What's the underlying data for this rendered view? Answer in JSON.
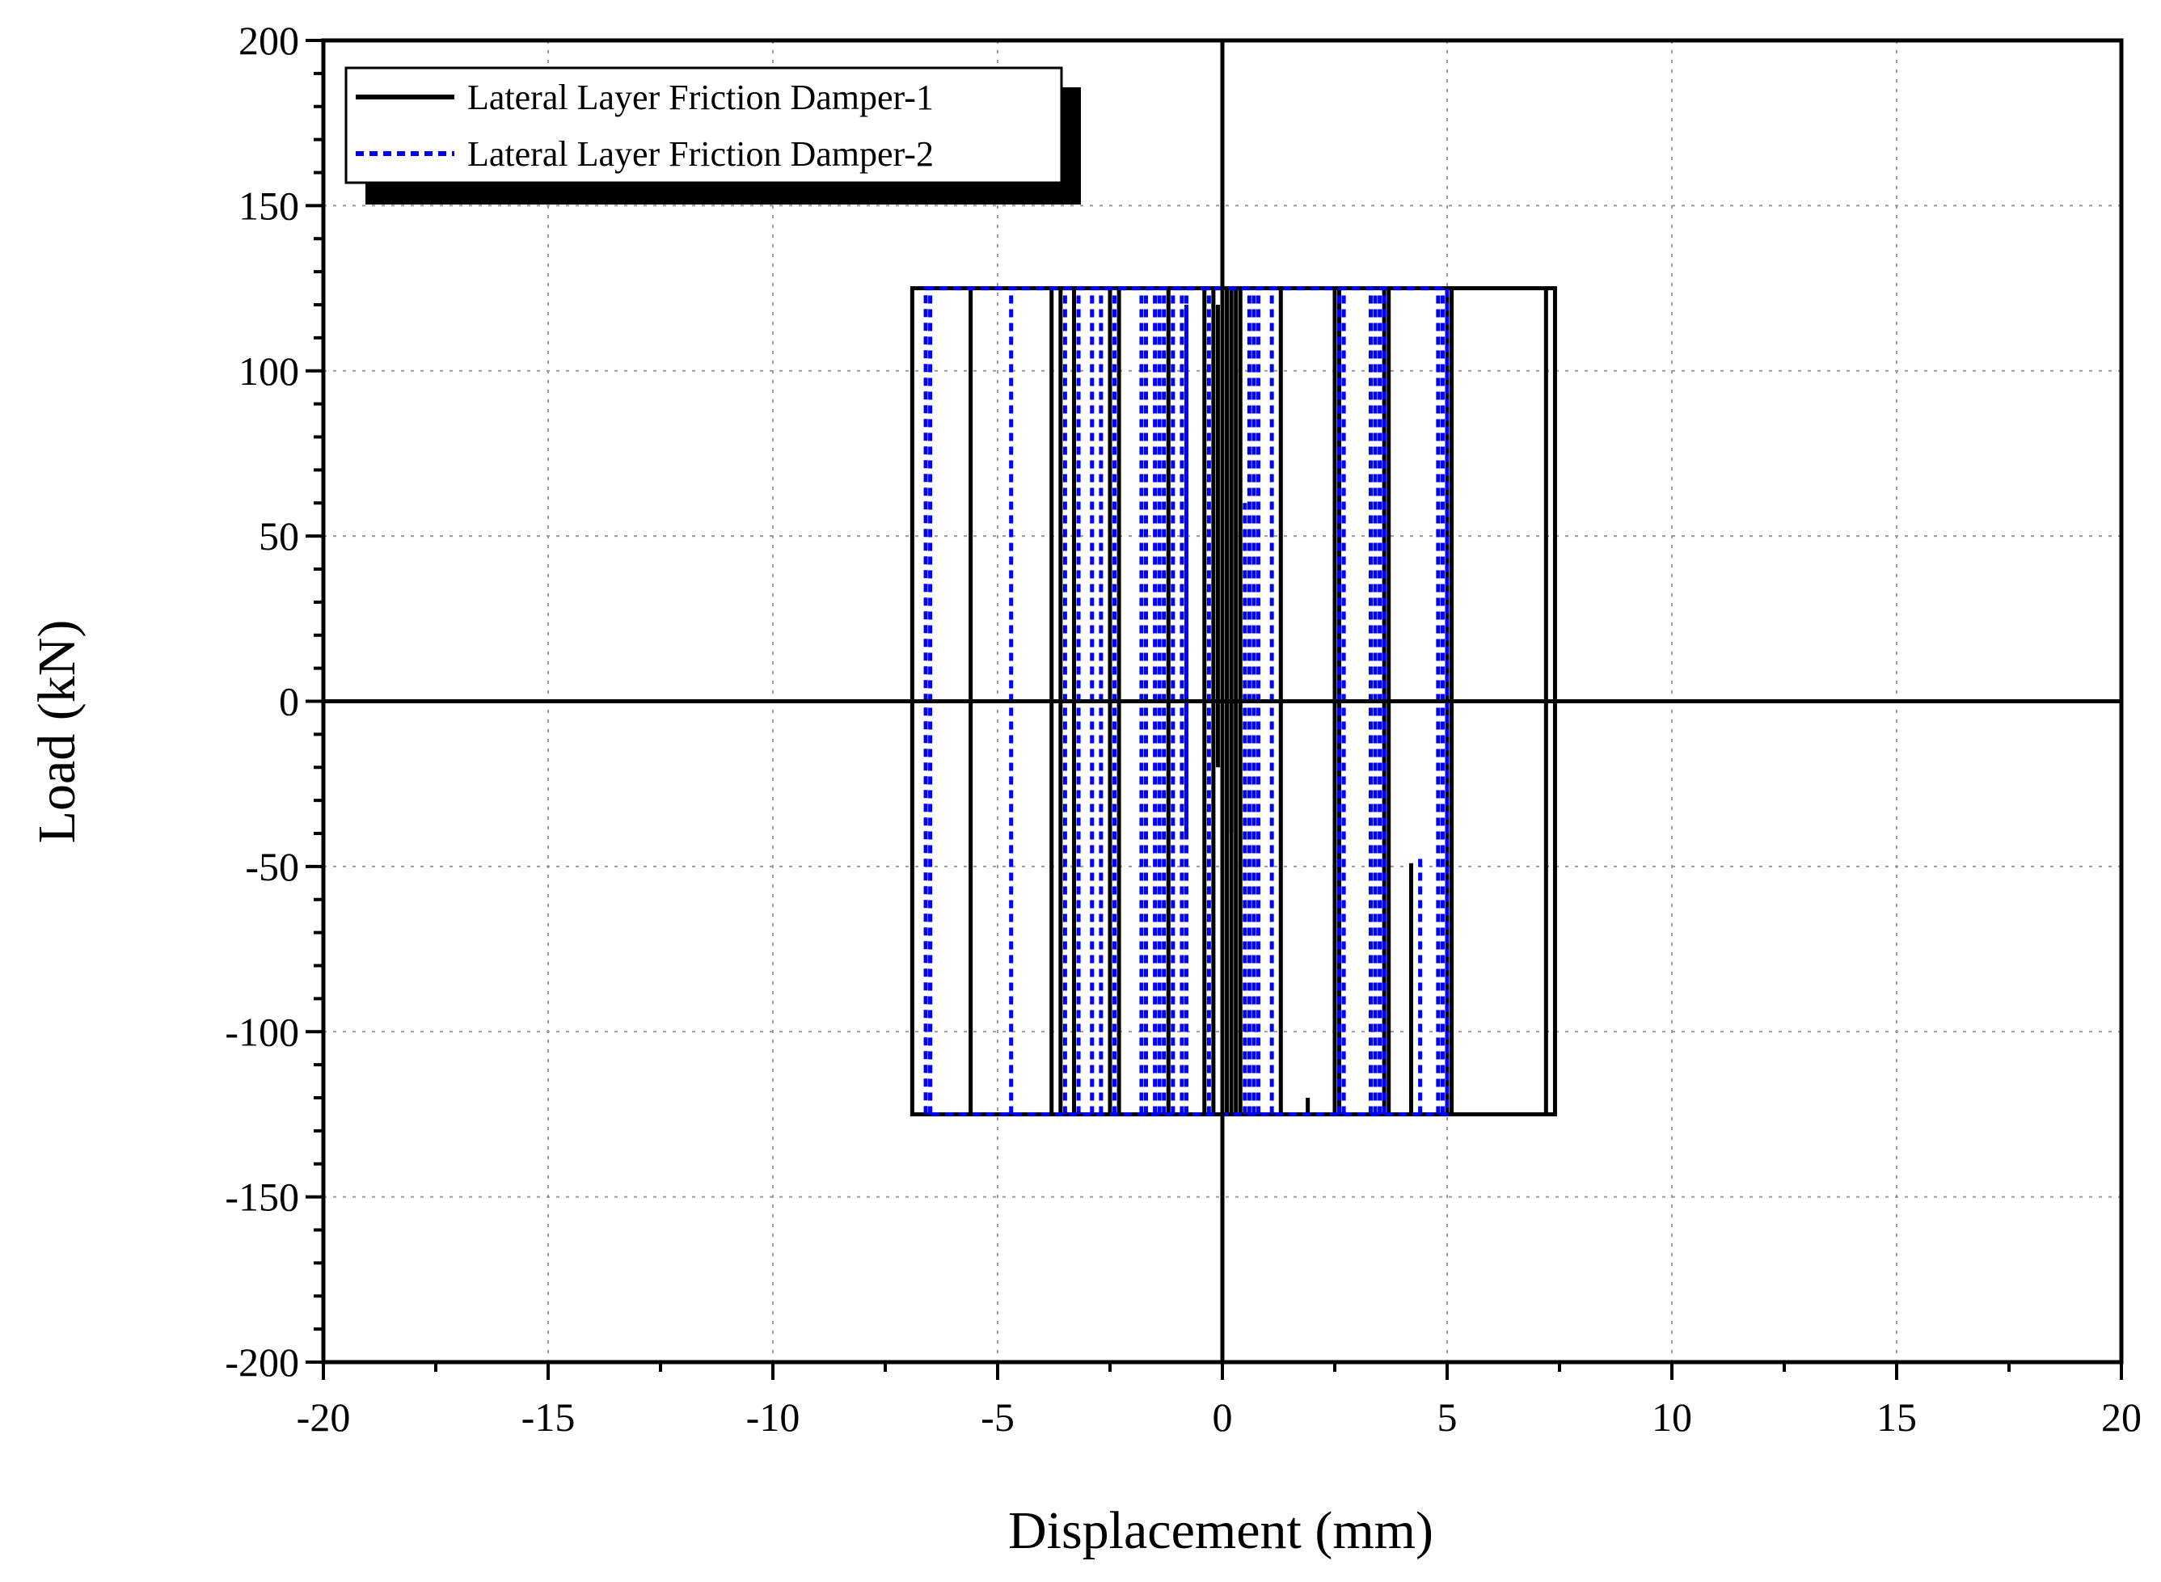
{
  "chart_data": {
    "type": "line",
    "title": "",
    "xlabel": "Displacement (mm)",
    "ylabel": "Load (kN)",
    "xlim": [
      -20,
      20
    ],
    "ylim": [
      -200,
      200
    ],
    "x_ticks": [
      -20,
      -15,
      -10,
      -5,
      0,
      5,
      10,
      15,
      20
    ],
    "y_ticks": [
      200,
      150,
      100,
      50,
      0,
      -50,
      -100,
      -150,
      -200
    ],
    "x_tick_labels": [
      "-20",
      "-15",
      "-10",
      "-5",
      "0",
      "5",
      "10",
      "15",
      "20"
    ],
    "y_tick_labels": [
      "200",
      "150",
      "100",
      "50",
      "0",
      "-50",
      "-100",
      "-150",
      "-200"
    ],
    "grid": true,
    "legend_position": "top-left",
    "series": [
      {
        "name": "Lateral Layer Friction Damper-1",
        "color": "#000000",
        "style": "solid",
        "box": {
          "xmin": -6.9,
          "xmax": 7.4,
          "ymin": -125,
          "ymax": 125
        },
        "vertical_x": [
          -5.6,
          -3.8,
          -3.6,
          -3.3,
          -2.5,
          -2.3,
          -1.2,
          -0.4,
          -0.2,
          0.0,
          0.1,
          0.2,
          0.3,
          0.4,
          1.3,
          2.5,
          2.6,
          3.6,
          3.7,
          5.0,
          5.1,
          7.2
        ],
        "vertical_y_range": [
          -125,
          125
        ],
        "partial_segments": [
          {
            "x": 1.9,
            "y1": -125,
            "y2": -120
          },
          {
            "x": 4.2,
            "y1": -125,
            "y2": -49
          },
          {
            "x": 0.2,
            "y1": -40,
            "y2": 125
          },
          {
            "x": -0.1,
            "y1": -20,
            "y2": 120
          }
        ]
      },
      {
        "name": "Lateral Layer Friction Damper-2",
        "color": "#0000ff",
        "style": "dashed",
        "box": {
          "xmin": -6.6,
          "xmax": 5.0,
          "ymin": -125,
          "ymax": 125
        },
        "vertical_x": [
          -6.5,
          -4.7,
          -3.5,
          -3.2,
          -2.9,
          -2.7,
          -2.4,
          -1.8,
          -1.7,
          -1.5,
          -1.4,
          -1.3,
          -1.1,
          -0.9,
          -0.8,
          -0.3,
          0.6,
          0.7,
          0.8,
          1.1,
          2.6,
          2.7,
          3.3,
          3.4,
          3.5,
          3.6,
          4.8,
          4.9
        ],
        "vertical_y_range": [
          -125,
          125
        ],
        "partial_segments": [
          {
            "x": -6.5,
            "y1": -125,
            "y2": -63
          },
          {
            "x": -0.8,
            "y1": -40,
            "y2": 120
          },
          {
            "x": -0.9,
            "y1": -125,
            "y2": 125
          },
          {
            "x": 4.4,
            "y1": -125,
            "y2": -47
          },
          {
            "x": 0.5,
            "y1": -125,
            "y2": 60
          }
        ]
      }
    ]
  }
}
